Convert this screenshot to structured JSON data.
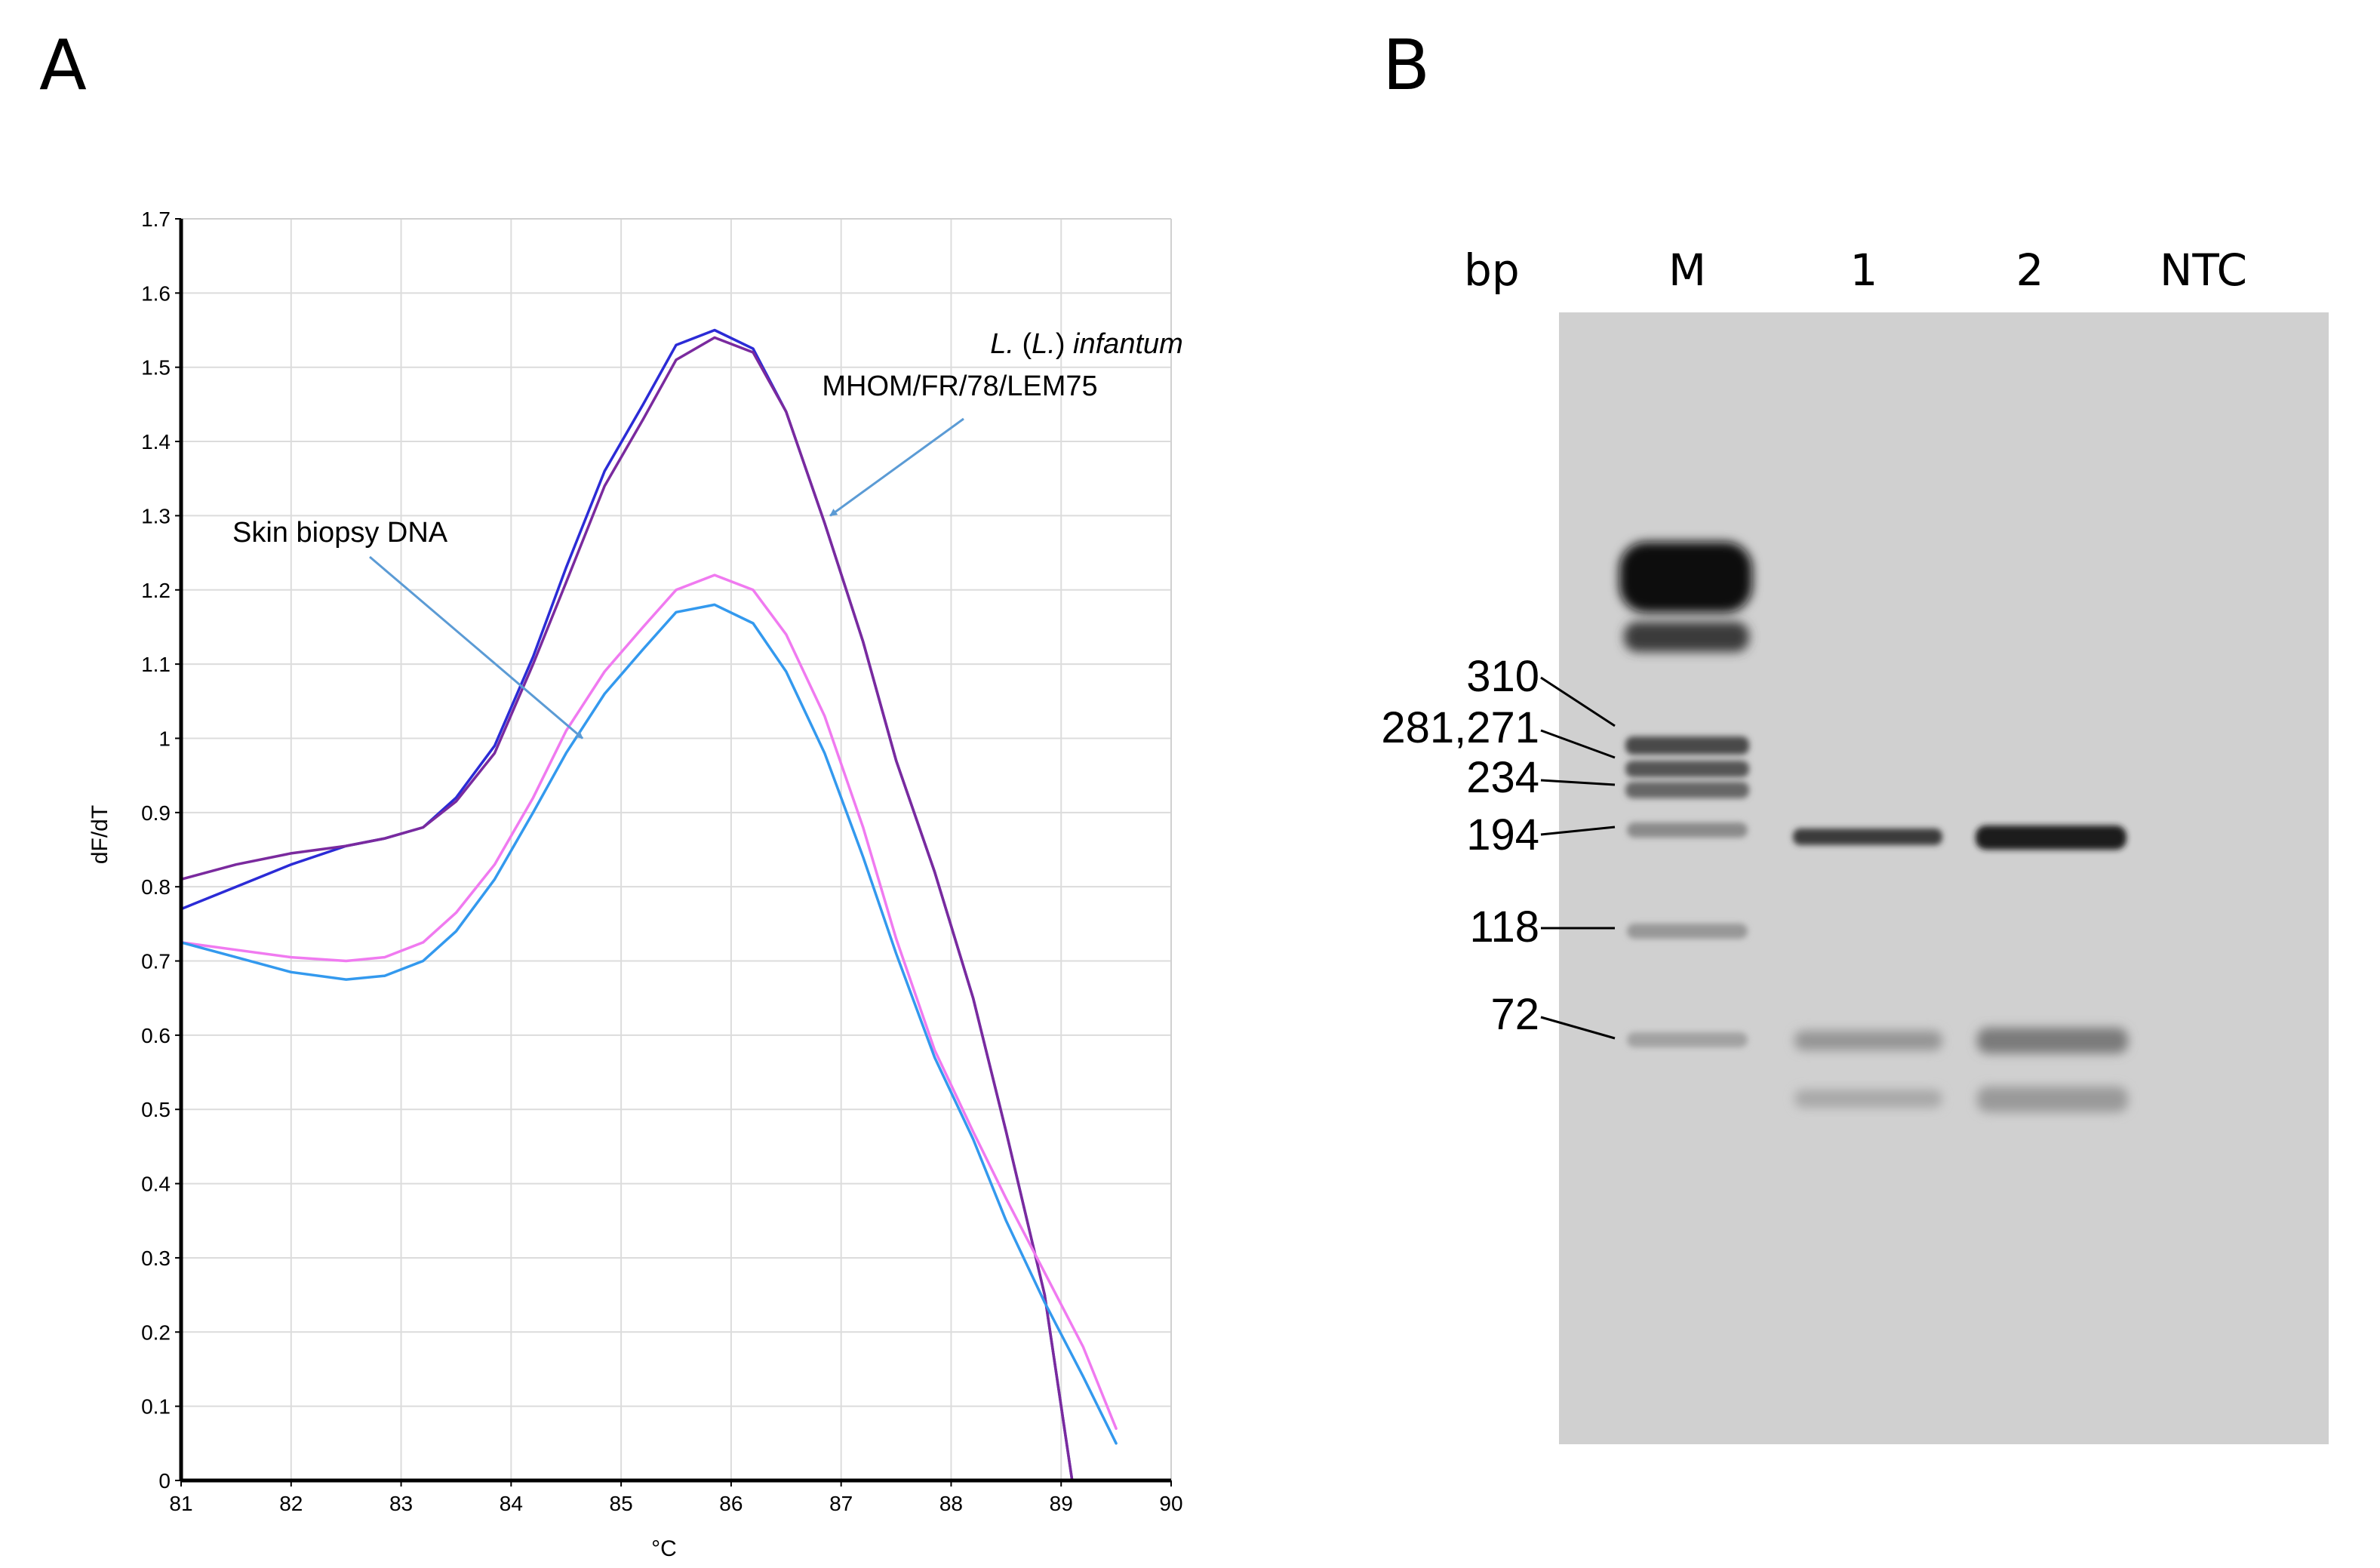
{
  "panel_a": {
    "letter": "A",
    "chart_data": {
      "type": "line",
      "xlabel": "°C",
      "ylabel": "dF/dT",
      "xlim": [
        81,
        90
      ],
      "ylim": [
        0,
        1.7
      ],
      "xticks": [
        "81",
        "82",
        "83",
        "84",
        "85",
        "86",
        "87",
        "88",
        "89",
        "90"
      ],
      "yticks": [
        "0",
        "0.1",
        "0.2",
        "0.3",
        "0.4",
        "0.5",
        "0.6",
        "0.7",
        "0.8",
        "0.9",
        "1",
        "1.1",
        "1.2",
        "1.3",
        "1.4",
        "1.5",
        "1.6",
        "1.7"
      ],
      "grid": true,
      "series": [
        {
          "name": "L. (L.) infantum MHOM/FR/78/LEM75 (blue)",
          "color": "#2b2bd6",
          "x": [
            81,
            81.5,
            82,
            82.5,
            82.85,
            83.2,
            83.5,
            83.85,
            84.2,
            84.5,
            84.85,
            85.2,
            85.5,
            85.85,
            86.2,
            86.5,
            86.85,
            87.2,
            87.5,
            87.85,
            88.2,
            88.5,
            88.85,
            89.1
          ],
          "y": [
            0.77,
            0.8,
            0.83,
            0.855,
            0.865,
            0.88,
            0.92,
            0.99,
            1.11,
            1.23,
            1.36,
            1.45,
            1.53,
            1.55,
            1.525,
            1.44,
            1.29,
            1.13,
            0.97,
            0.82,
            0.65,
            0.47,
            0.25,
            0.0
          ]
        },
        {
          "name": "L. (L.) infantum MHOM/FR/78/LEM75 (purple)",
          "color": "#7a2a9e",
          "x": [
            81,
            81.5,
            82,
            82.5,
            82.85,
            83.2,
            83.5,
            83.85,
            84.2,
            84.5,
            84.85,
            85.2,
            85.5,
            85.85,
            86.2,
            86.5,
            86.85,
            87.2,
            87.5,
            87.85,
            88.2,
            88.5,
            88.85,
            89.1
          ],
          "y": [
            0.81,
            0.83,
            0.845,
            0.855,
            0.865,
            0.88,
            0.915,
            0.98,
            1.1,
            1.21,
            1.34,
            1.43,
            1.51,
            1.54,
            1.52,
            1.44,
            1.29,
            1.13,
            0.97,
            0.82,
            0.65,
            0.47,
            0.25,
            0.0
          ]
        },
        {
          "name": "Skin biopsy DNA (pink)",
          "color": "#f07af0",
          "x": [
            81,
            81.5,
            82,
            82.5,
            82.85,
            83.2,
            83.5,
            83.85,
            84.2,
            84.5,
            84.85,
            85.2,
            85.5,
            85.85,
            86.2,
            86.5,
            86.85,
            87.2,
            87.5,
            87.85,
            88.2,
            88.5,
            88.85,
            89.2,
            89.5
          ],
          "y": [
            0.725,
            0.715,
            0.705,
            0.7,
            0.705,
            0.725,
            0.765,
            0.83,
            0.92,
            1.01,
            1.09,
            1.15,
            1.2,
            1.22,
            1.2,
            1.14,
            1.03,
            0.88,
            0.73,
            0.58,
            0.47,
            0.38,
            0.28,
            0.18,
            0.07
          ]
        },
        {
          "name": "Skin biopsy DNA (blue)",
          "color": "#3399ee",
          "x": [
            81,
            81.5,
            82,
            82.5,
            82.85,
            83.2,
            83.5,
            83.85,
            84.2,
            84.5,
            84.85,
            85.2,
            85.5,
            85.85,
            86.2,
            86.5,
            86.85,
            87.2,
            87.5,
            87.85,
            88.2,
            88.5,
            88.85,
            89.2,
            89.5
          ],
          "y": [
            0.725,
            0.705,
            0.685,
            0.675,
            0.68,
            0.7,
            0.74,
            0.81,
            0.9,
            0.98,
            1.06,
            1.12,
            1.17,
            1.18,
            1.155,
            1.09,
            0.98,
            0.84,
            0.71,
            0.57,
            0.46,
            0.35,
            0.24,
            0.14,
            0.05
          ]
        }
      ],
      "annotations": [
        {
          "line1_species_italic": "L.",
          "line1_sub_open": " (",
          "line1_sub_italic": "L.",
          "line1_sub_close": ") ",
          "line1_name_italic": "infantum",
          "line2": "MHOM/FR/78/LEM75",
          "points_to": {
            "x": 86.9,
            "y": 1.3
          }
        },
        {
          "text": "Skin biopsy DNA",
          "points_to": {
            "x": 84.65,
            "y": 1.0
          }
        }
      ]
    }
  },
  "panel_b": {
    "letter": "B",
    "header": {
      "unit": "bp",
      "lanes": [
        "M",
        "1",
        "2",
        "NTC"
      ]
    },
    "size_labels": [
      "310",
      "281,271",
      "234",
      "194",
      "118",
      "72"
    ],
    "bands": {
      "ladder": [
        "primer/high band",
        "high band 2",
        "310",
        "281,271",
        "234",
        "194",
        "118",
        "72"
      ],
      "lane_1": [
        "194",
        "72",
        "primer-dimer"
      ],
      "lane_2": [
        "194",
        "72",
        "primer-dimer"
      ],
      "ntc": []
    }
  }
}
